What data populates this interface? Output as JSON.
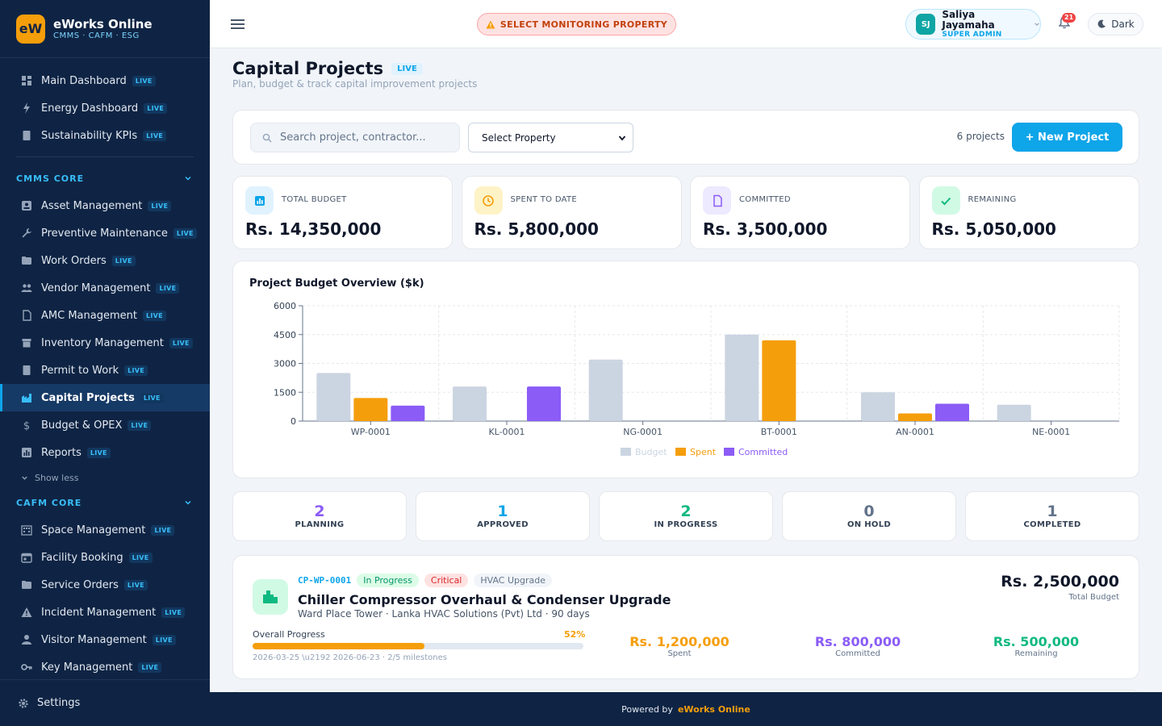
{
  "brand": {
    "logo": "eW",
    "title": "eWorks Online",
    "subtitle": "CMMS · CAFM · ESG"
  },
  "live_badge": "LIVE",
  "nav": {
    "top": [
      {
        "label": "Main Dashboard",
        "icon": "dashboard-icon"
      },
      {
        "label": "Energy Dashboard",
        "icon": "bolt-icon"
      },
      {
        "label": "Sustainability KPIs",
        "icon": "sheet-icon"
      }
    ],
    "cmms_title": "CMMS CORE",
    "cmms": [
      {
        "label": "Asset Management",
        "icon": "asset-icon"
      },
      {
        "label": "Preventive Maintenance",
        "icon": "wrench-icon"
      },
      {
        "label": "Work Orders",
        "icon": "folder-icon"
      },
      {
        "label": "Vendor Management",
        "icon": "people-icon"
      },
      {
        "label": "AMC Management",
        "icon": "document-icon"
      },
      {
        "label": "Inventory Management",
        "icon": "box-icon"
      },
      {
        "label": "Permit to Work",
        "icon": "sheet-icon"
      },
      {
        "label": "Capital Projects",
        "icon": "factory-icon"
      },
      {
        "label": "Budget & OPEX",
        "icon": "dollar-icon"
      },
      {
        "label": "Reports",
        "icon": "report-icon"
      }
    ],
    "show_less": "Show less",
    "cafm_title": "CAFM CORE",
    "cafm": [
      {
        "label": "Space Management",
        "icon": "building-icon"
      },
      {
        "label": "Facility Booking",
        "icon": "calendar-icon"
      },
      {
        "label": "Service Orders",
        "icon": "folder-icon"
      },
      {
        "label": "Incident Management",
        "icon": "warning-icon"
      },
      {
        "label": "Visitor Management",
        "icon": "person-icon"
      },
      {
        "label": "Key Management",
        "icon": "key-icon"
      }
    ],
    "settings": "Settings"
  },
  "topbar": {
    "monitor": "SELECT MONITORING PROPERTY",
    "user_initials": "SJ",
    "user_name": "Saliya Jayamaha",
    "user_role": "SUPER ADMIN",
    "notifications": "21",
    "theme": "Dark"
  },
  "page": {
    "title": "Capital Projects",
    "badge": "LIVE",
    "subtitle": "Plan, budget & track capital improvement projects"
  },
  "toolbar": {
    "search_placeholder": "Search project, contractor...",
    "property_select": "Select Property",
    "count": "6 projects",
    "new_button": "+ New Project"
  },
  "stats": [
    {
      "label": "TOTAL BUDGET",
      "value": "Rs. 14,350,000",
      "color": "#0ea5e9",
      "bg": "#e0f2fe"
    },
    {
      "label": "SPENT TO DATE",
      "value": "Rs. 5,800,000",
      "color": "#f59e0b",
      "bg": "#fef3c7"
    },
    {
      "label": "COMMITTED",
      "value": "Rs. 3,500,000",
      "color": "#8b5cf6",
      "bg": "#ede9fe"
    },
    {
      "label": "REMAINING",
      "value": "Rs. 5,050,000",
      "color": "#10b981",
      "bg": "#d1fae5"
    }
  ],
  "chart_data": {
    "type": "bar",
    "title": "Project Budget Overview ($k)",
    "categories": [
      "WP-0001",
      "KL-0001",
      "NG-0001",
      "BT-0001",
      "AN-0001",
      "NE-0001"
    ],
    "series": [
      {
        "name": "Budget",
        "values": [
          2500,
          1800,
          3200,
          4500,
          1500,
          850
        ],
        "color": "#cbd5e1"
      },
      {
        "name": "Spent",
        "values": [
          1200,
          0,
          0,
          4200,
          400,
          0
        ],
        "color": "#f59e0b"
      },
      {
        "name": "Committed",
        "values": [
          800,
          1800,
          0,
          0,
          900,
          0
        ],
        "color": "#8b5cf6"
      }
    ],
    "yticks": [
      "6000",
      "4500",
      "3000",
      "1500",
      "0"
    ],
    "ylim": [
      0,
      6000
    ],
    "grid": true,
    "legend": "bottom"
  },
  "status_counts": [
    {
      "count": "2",
      "label": "PLANNING",
      "color": "#8b5cf6"
    },
    {
      "count": "1",
      "label": "APPROVED",
      "color": "#0ea5e9"
    },
    {
      "count": "2",
      "label": "IN PROGRESS",
      "color": "#10b981"
    },
    {
      "count": "0",
      "label": "ON HOLD",
      "color": "#64748b"
    },
    {
      "count": "1",
      "label": "COMPLETED",
      "color": "#64748b"
    }
  ],
  "project": {
    "code": "CP-WP-0001",
    "status": "In Progress",
    "priority": "Critical",
    "category": "HVAC Upgrade",
    "title": "Chiller Compressor Overhaul & Condenser Upgrade",
    "meta": "Ward Place Tower · Lanka HVAC Solutions (Pvt) Ltd · 90 days",
    "total": "Rs. 2,500,000",
    "total_label": "Total Budget",
    "progress_label": "Overall Progress",
    "progress_pct": "52%",
    "progress_value": 0.52,
    "dates": "2026-03-25 \\u2192 2026-06-23 · 2/5 milestones",
    "spent": "Rs. 1,200,000",
    "spent_label": "Spent",
    "committed": "Rs. 800,000",
    "committed_label": "Committed",
    "remaining": "Rs. 500,000",
    "remaining_label": "Remaining"
  },
  "footer": {
    "prefix": "Powered by",
    "brand": "eWorks Online"
  }
}
